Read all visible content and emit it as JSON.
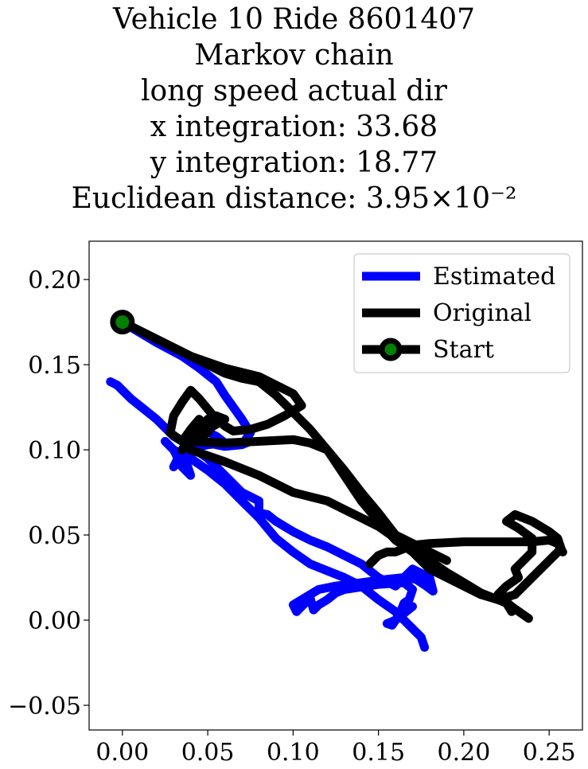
{
  "chart_data": {
    "type": "line",
    "title_lines": [
      "Vehicle 10 Ride 8601407",
      "Markov chain",
      "long speed actual dir",
      "x integration: 33.68",
      "y integration: 18.77",
      "Euclidean distance: 3.95×10⁻²"
    ],
    "xlim": [
      -0.0195,
      0.2695
    ],
    "ylim": [
      -0.0645,
      0.2225
    ],
    "xticks": [
      0.0,
      0.05,
      0.1,
      0.15,
      0.2,
      0.25
    ],
    "xtick_labels": [
      "0.00",
      "0.05",
      "0.10",
      "0.15",
      "0.20",
      "0.25"
    ],
    "yticks": [
      -0.05,
      0.0,
      0.05,
      0.1,
      0.15,
      0.2
    ],
    "ytick_labels": [
      "−0.05",
      "0.00",
      "0.05",
      "0.10",
      "0.15",
      "0.20"
    ],
    "grid": false,
    "legend_position": "upper right",
    "series": [
      {
        "name": "Estimated",
        "color": "#0000ff",
        "x": [
          0.0,
          0.02,
          0.035,
          0.045,
          0.055,
          0.06,
          0.065,
          0.07,
          0.075,
          0.07,
          0.06,
          0.05,
          0.04,
          0.045,
          0.055,
          0.06,
          0.07,
          0.075,
          0.07,
          0.06,
          0.05,
          0.045,
          0.04,
          0.035,
          0.03,
          0.035,
          0.04,
          0.035,
          0.03,
          0.025,
          0.03,
          0.04,
          0.05,
          0.06,
          0.07,
          0.08,
          0.09,
          0.1,
          0.11,
          0.12,
          0.13,
          0.14,
          0.15,
          0.16,
          0.165,
          0.17,
          0.175,
          0.177
        ],
        "y": [
          0.175,
          0.163,
          0.155,
          0.148,
          0.14,
          0.132,
          0.125,
          0.118,
          0.11,
          0.103,
          0.102,
          0.104,
          0.105,
          0.113,
          0.108,
          0.104,
          0.103,
          0.105,
          0.104,
          0.104,
          0.103,
          0.102,
          0.1,
          0.095,
          0.09,
          0.1,
          0.085,
          0.09,
          0.1,
          0.105,
          0.1,
          0.095,
          0.088,
          0.08,
          0.07,
          0.06,
          0.048,
          0.04,
          0.033,
          0.029,
          0.025,
          0.02,
          0.012,
          0.005,
          0.0,
          -0.005,
          -0.01,
          -0.016
        ]
      },
      {
        "name": "Estimated",
        "color": "#0000ff",
        "x": [
          -0.007,
          -0.003,
          0.0,
          0.005,
          0.01,
          0.015,
          0.02,
          0.025,
          0.03,
          0.04,
          0.05,
          0.06,
          0.07,
          0.08,
          0.08,
          0.085,
          0.09,
          0.1,
          0.11,
          0.12,
          0.13,
          0.14,
          0.15,
          0.16,
          0.17,
          0.18,
          0.182,
          0.178,
          0.172,
          0.165,
          0.155,
          0.14,
          0.125,
          0.115,
          0.11,
          0.105,
          0.1,
          0.102,
          0.105,
          0.11,
          0.112,
          0.115,
          0.12,
          0.125,
          0.13,
          0.15,
          0.165,
          0.17,
          0.168,
          0.165,
          0.163,
          0.16,
          0.158,
          0.155,
          0.16,
          0.165,
          0.17
        ],
        "y": [
          0.14,
          0.138,
          0.135,
          0.13,
          0.126,
          0.122,
          0.118,
          0.113,
          0.108,
          0.102,
          0.095,
          0.085,
          0.075,
          0.07,
          0.063,
          0.062,
          0.058,
          0.052,
          0.047,
          0.043,
          0.038,
          0.033,
          0.025,
          0.02,
          0.03,
          0.025,
          0.017,
          0.02,
          0.024,
          0.025,
          0.024,
          0.022,
          0.02,
          0.018,
          0.015,
          0.012,
          0.009,
          0.005,
          0.008,
          0.013,
          0.006,
          0.009,
          0.012,
          0.016,
          0.018,
          0.021,
          0.022,
          0.018,
          0.012,
          0.01,
          0.005,
          0.0,
          -0.003,
          -0.002,
          0.0,
          0.004,
          0.008
        ]
      },
      {
        "name": "Original",
        "color": "#000000",
        "x": [
          0.0,
          0.02,
          0.04,
          0.06,
          0.08,
          0.09,
          0.1,
          0.105,
          0.095,
          0.085,
          0.075,
          0.065,
          0.06,
          0.055,
          0.05,
          0.045,
          0.04,
          0.035,
          0.03,
          0.028,
          0.035,
          0.04,
          0.045,
          0.05,
          0.055,
          0.06,
          0.055,
          0.05,
          0.04,
          0.035,
          0.04,
          0.045,
          0.05,
          0.045,
          0.04,
          0.06,
          0.08,
          0.1,
          0.11,
          0.12,
          0.13,
          0.14,
          0.15,
          0.16,
          0.17,
          0.175,
          0.18,
          0.19,
          0.2,
          0.21,
          0.22,
          0.225,
          0.228
        ],
        "y": [
          0.175,
          0.165,
          0.155,
          0.148,
          0.143,
          0.138,
          0.133,
          0.126,
          0.12,
          0.115,
          0.112,
          0.111,
          0.114,
          0.118,
          0.124,
          0.13,
          0.135,
          0.128,
          0.12,
          0.11,
          0.105,
          0.112,
          0.118,
          0.112,
          0.115,
          0.118,
          0.12,
          0.11,
          0.105,
          0.1,
          0.108,
          0.112,
          0.118,
          0.11,
          0.105,
          0.104,
          0.105,
          0.106,
          0.104,
          0.1,
          0.085,
          0.07,
          0.058,
          0.047,
          0.04,
          0.035,
          0.03,
          0.025,
          0.02,
          0.015,
          0.012,
          0.01,
          0.005
        ]
      },
      {
        "name": "Original",
        "color": "#000000",
        "x": [
          0.0,
          0.03,
          0.05,
          0.06,
          0.07,
          0.08,
          0.09,
          0.1,
          0.11,
          0.12,
          0.13,
          0.14,
          0.15,
          0.16,
          0.17,
          0.175,
          0.18,
          0.19,
          0.2,
          0.21,
          0.22,
          0.23,
          0.24,
          0.25,
          0.257,
          0.255,
          0.25,
          0.24,
          0.23,
          0.225,
          0.232,
          0.24,
          0.24,
          0.235,
          0.23,
          0.232,
          0.225,
          0.22,
          0.228,
          0.238
        ],
        "y": [
          0.175,
          0.16,
          0.15,
          0.145,
          0.142,
          0.14,
          0.132,
          0.122,
          0.112,
          0.1,
          0.088,
          0.075,
          0.063,
          0.05,
          0.045,
          0.04,
          0.035,
          0.028,
          0.022,
          0.016,
          0.012,
          0.015,
          0.025,
          0.035,
          0.042,
          0.048,
          0.052,
          0.058,
          0.062,
          0.058,
          0.054,
          0.048,
          0.04,
          0.035,
          0.03,
          0.025,
          0.02,
          0.015,
          0.008,
          0.001
        ]
      },
      {
        "name": "Original",
        "color": "#000000",
        "x": [
          0.145,
          0.15,
          0.155,
          0.16,
          0.165,
          0.17,
          0.18,
          0.2,
          0.22,
          0.24,
          0.25,
          0.255,
          0.258
        ],
        "y": [
          0.033,
          0.038,
          0.04,
          0.04,
          0.042,
          0.044,
          0.045,
          0.046,
          0.046,
          0.046,
          0.047,
          0.045,
          0.04
        ]
      },
      {
        "name": "Original",
        "color": "#000000",
        "x": [
          0.04,
          0.06,
          0.08,
          0.1,
          0.12,
          0.13,
          0.14,
          0.15,
          0.16,
          0.17,
          0.18,
          0.19
        ],
        "y": [
          0.1,
          0.093,
          0.085,
          0.075,
          0.07,
          0.065,
          0.06,
          0.055,
          0.048,
          0.045,
          0.04,
          0.035
        ]
      }
    ],
    "start": {
      "x": 0.0,
      "y": 0.175,
      "name": "Start",
      "marker_color": "#008000",
      "edge_color": "#000000"
    },
    "legend": [
      {
        "label": "Estimated",
        "color": "#0000ff",
        "style": "line"
      },
      {
        "label": "Original",
        "color": "#000000",
        "style": "line"
      },
      {
        "label": "Start",
        "color": "#000000",
        "style": "line-marker",
        "marker_color": "#008000"
      }
    ]
  }
}
